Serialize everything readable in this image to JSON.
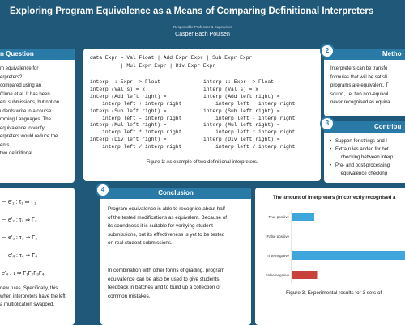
{
  "header": {
    "title": "Exploring Program Equivalence as a Means of Comparing Definitional Interpreters",
    "subtitle": "Responsible Professor & Supervisor",
    "author": "Casper Bach Poulsen"
  },
  "research_question": {
    "heading": "n Question",
    "lines": [
      "m equivalence for",
      "erpreters?",
      "compared using an",
      "Clune et al. It has been",
      "ent submissions, but not on",
      "udents write in a course",
      "mming Languages. The",
      "equivalence to verify",
      "erpreters would reduce the",
      "ents.",
      "two definitional"
    ]
  },
  "rules": {
    "lines": [
      "⊢ e′₁ : τ₁ ⇒ Γ₁",
      "⊢ e′₂ : τ₂ ⇒ Γ₂",
      "⊢ e′₃ : τ₃ ⇒ Γ₃",
      "⊢ e′₄ : τ₄ ⇒ Γ₄",
      "e′₄ : τ ⇒ Γ₁Γ₂Γ₃Γ₄"
    ],
    "text": [
      "new rules. Specifically, this",
      "when interpreters have the left",
      "a multiplication swapped."
    ]
  },
  "code": {
    "data_decl": [
      "data Expr = Val Float | Add Expr Expr | Sub Expr Expr",
      "          | Mul Expr Expr | Div Expr Expr"
    ],
    "left": [
      "interp :: Expr -> Float",
      "interp (Val s) = x",
      "interp (Add left right) =",
      "    interp left + interp right",
      "interp (Sub left right) =",
      "    interp left - interp right",
      "interp (Mul left right) =",
      "    interp left * interp right",
      "interp (Div left right) =",
      "    interp left / interp right"
    ],
    "right": [
      "interp :: Expr -> Float",
      "interp (Val s) = x",
      "interp (Add left right) =",
      "    interp left + interp right",
      "interp (Sub left right) =",
      "    interp left - interp right",
      "interp (Mul left right) =",
      "    interp left * interp right",
      "interp (Div left right) =",
      "    interp left / interp right"
    ],
    "caption": "Figure 1: As example of two definitional interpreters."
  },
  "method": {
    "number": "2",
    "heading": "Metho",
    "lines": [
      "Interpreters can be transfo",
      "formulas that will be satisfi",
      "programs are equivalent. T",
      "sound, i.e. two non-equival",
      "never recognised as equiva"
    ]
  },
  "contributions": {
    "number": "3",
    "heading": "Contribu",
    "lines": [
      "Support for strings and l",
      "Extra rules added for bet",
      "    checking between interp",
      "Pre- and post-processing",
      "    equivalence checking"
    ]
  },
  "conclusion": {
    "number": "4",
    "heading": "Conclusion",
    "paragraphs": [
      "Program equivalence is able to recognise about half of the tested modifications as equivalent. Because of its soundness it is suitable for verifying student submissions, but its effectiveness is yet to be tested on real student submissions.",
      "In combination with other forms of grading, program equivalence can be also be used to give students feedback in batches and to build up a collection of common mistakes."
    ]
  },
  "chart_data": {
    "type": "bar",
    "title": "The amount of interpreters (in)correctly recognised a",
    "categories": [
      "True positive",
      "False positive",
      "True negative",
      "False negative"
    ],
    "values": [
      8,
      0,
      40,
      9
    ],
    "colors": [
      "#3ea6dc",
      "#3ea6dc",
      "#3ea6dc",
      "#c8413a"
    ],
    "xlim": [
      0,
      40
    ],
    "caption": "Figure 3: Experimental results for 3 sets of"
  }
}
